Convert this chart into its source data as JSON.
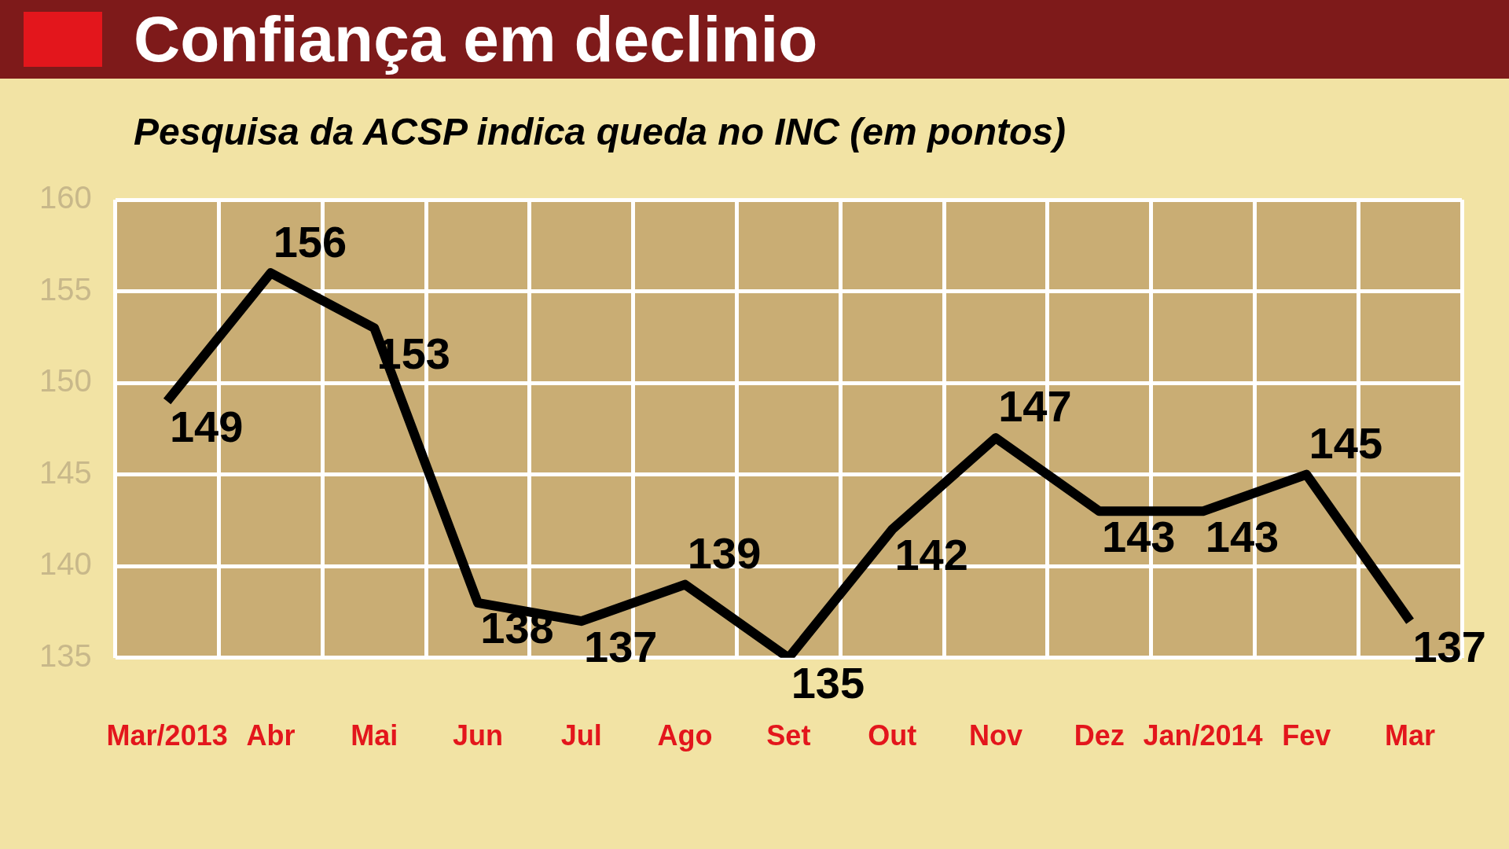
{
  "chart_data": {
    "type": "line",
    "title": "Confiança em declinio",
    "subtitle": "Pesquisa da ACSP indica queda no INC (em pontos)",
    "categories": [
      "Mar/2013",
      "Abr",
      "Mai",
      "Jun",
      "Jul",
      "Ago",
      "Set",
      "Out",
      "Nov",
      "Dez",
      "Jan/2014",
      "Fev",
      "Mar"
    ],
    "series": [
      {
        "color": "#000000",
        "values": [
          149,
          156,
          153,
          138,
          137,
          139,
          135,
          142,
          147,
          143,
          143,
          145,
          137
        ]
      }
    ],
    "ylim": [
      135,
      160
    ],
    "yticks": [
      135,
      140,
      145,
      150,
      155,
      160
    ],
    "grid": true,
    "legend": false,
    "marker": "none",
    "data_labels": true
  }
}
